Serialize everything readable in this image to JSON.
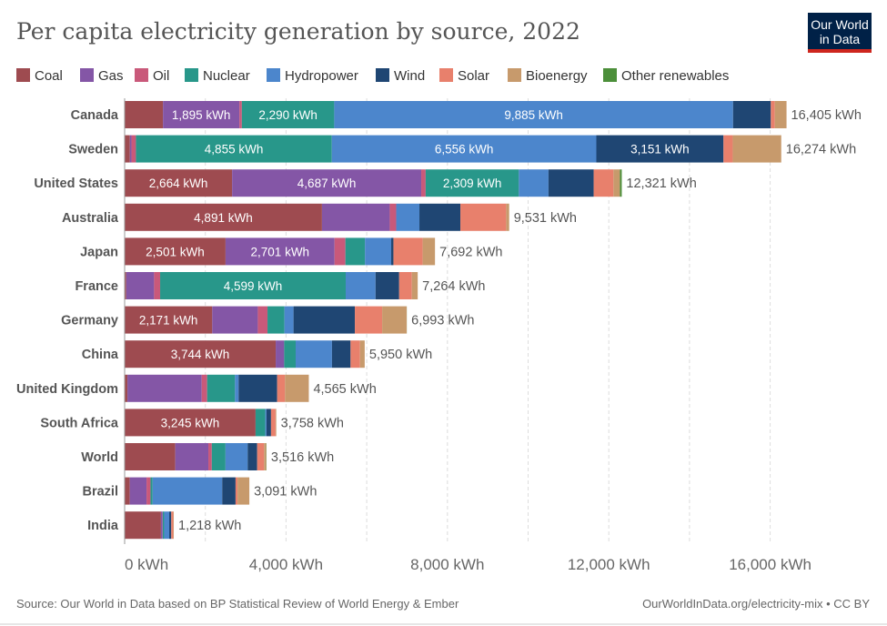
{
  "logo": {
    "line1": "Our World",
    "line2": "in Data",
    "bg": "#002147",
    "accent": "#ce261e"
  },
  "footer": {
    "source": "Source: Our World in Data based on BP Statistical Review of World Energy & Ember",
    "link": "OurWorldInData.org/electricity-mix • CC BY"
  },
  "chart_data": {
    "type": "bar",
    "orientation": "horizontal-stacked",
    "title": "Per capita electricity generation by source, 2022",
    "unit": "kWh",
    "xlim": [
      0,
      16405
    ],
    "xticks": [
      0,
      4000,
      8000,
      12000,
      16000
    ],
    "xtick_labels": [
      "0 kWh",
      "4,000 kWh",
      "8,000 kWh",
      "12,000 kWh",
      "16,000 kWh"
    ],
    "grid": "vertical dashed",
    "legend_placement": "top",
    "sources": [
      {
        "name": "Coal",
        "color": "#9e4b50"
      },
      {
        "name": "Gas",
        "color": "#8456a6"
      },
      {
        "name": "Oil",
        "color": "#c9597a"
      },
      {
        "name": "Nuclear",
        "color": "#28978a"
      },
      {
        "name": "Hydropower",
        "color": "#4c86cc"
      },
      {
        "name": "Wind",
        "color": "#1f4673"
      },
      {
        "name": "Solar",
        "color": "#e8806c"
      },
      {
        "name": "Bioenergy",
        "color": "#c79a6c"
      },
      {
        "name": "Other renewables",
        "color": "#4c8f3a"
      }
    ],
    "categories": [
      "Canada",
      "Sweden",
      "United States",
      "Australia",
      "Japan",
      "France",
      "Germany",
      "China",
      "United Kingdom",
      "South Africa",
      "World",
      "Brazil",
      "India"
    ],
    "values": [
      [
        950,
        1895,
        60,
        2290,
        9885,
        935,
        100,
        290,
        0
      ],
      [
        130,
        40,
        110,
        4855,
        6556,
        3151,
        230,
        1202,
        0
      ],
      [
        2664,
        4687,
        110,
        2309,
        735,
        1120,
        490,
        160,
        46
      ],
      [
        4891,
        1680,
        160,
        0,
        575,
        1015,
        1135,
        75,
        0
      ],
      [
        2501,
        2701,
        270,
        485,
        650,
        55,
        725,
        305,
        0
      ],
      [
        40,
        690,
        150,
        4599,
        740,
        585,
        315,
        145,
        0
      ],
      [
        2171,
        1130,
        240,
        420,
        225,
        1520,
        677,
        608,
        2
      ],
      [
        3744,
        210,
        0,
        285,
        900,
        460,
        235,
        116,
        0
      ],
      [
        70,
        1840,
        135,
        690,
        90,
        955,
        195,
        590,
        0
      ],
      [
        3245,
        0,
        0,
        240,
        30,
        113,
        113,
        17,
        0
      ],
      [
        1255,
        820,
        85,
        340,
        550,
        235,
        170,
        55,
        6
      ],
      [
        128,
        415,
        98,
        53,
        1725,
        330,
        50,
        292,
        0
      ],
      [
        900,
        40,
        5,
        35,
        125,
        50,
        50,
        13,
        0
      ]
    ],
    "totals": [
      "16,405 kWh",
      "16,274 kWh",
      "12,321 kWh",
      "9,531 kWh",
      "7,692 kWh",
      "7,264 kWh",
      "6,993 kWh",
      "5,950 kWh",
      "4,565 kWh",
      "3,758 kWh",
      "3,516 kWh",
      "3,091 kWh",
      "1,218 kWh"
    ],
    "data_labels": [
      {
        "country": "Canada",
        "source": "Gas",
        "text": "1,895 kWh"
      },
      {
        "country": "Canada",
        "source": "Nuclear",
        "text": "2,290 kWh"
      },
      {
        "country": "Canada",
        "source": "Hydropower",
        "text": "9,885 kWh"
      },
      {
        "country": "Sweden",
        "source": "Nuclear",
        "text": "4,855 kWh"
      },
      {
        "country": "Sweden",
        "source": "Hydropower",
        "text": "6,556 kWh"
      },
      {
        "country": "Sweden",
        "source": "Wind",
        "text": "3,151 kWh"
      },
      {
        "country": "United States",
        "source": "Coal",
        "text": "2,664 kWh"
      },
      {
        "country": "United States",
        "source": "Gas",
        "text": "4,687 kWh"
      },
      {
        "country": "United States",
        "source": "Nuclear",
        "text": "2,309 kWh"
      },
      {
        "country": "Australia",
        "source": "Coal",
        "text": "4,891 kWh"
      },
      {
        "country": "Japan",
        "source": "Coal",
        "text": "2,501 kWh"
      },
      {
        "country": "Japan",
        "source": "Gas",
        "text": "2,701 kWh"
      },
      {
        "country": "France",
        "source": "Nuclear",
        "text": "4,599 kWh"
      },
      {
        "country": "Germany",
        "source": "Coal",
        "text": "2,171 kWh"
      },
      {
        "country": "China",
        "source": "Coal",
        "text": "3,744 kWh"
      },
      {
        "country": "South Africa",
        "source": "Coal",
        "text": "3,245 kWh"
      }
    ]
  }
}
